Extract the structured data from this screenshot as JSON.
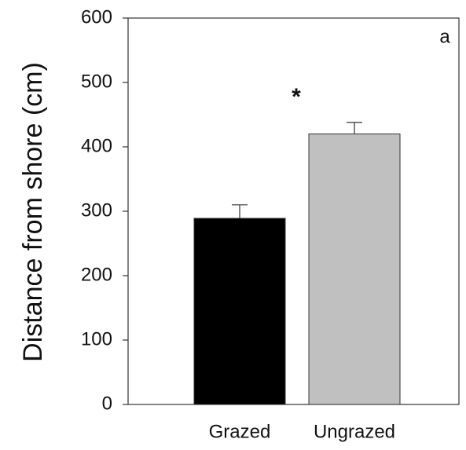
{
  "chart_data": {
    "type": "bar",
    "y_label": "Distance from shore (cm)",
    "categories": [
      "Grazed",
      "Ungrazed"
    ],
    "values": [
      289,
      420
    ],
    "errors": [
      21,
      18
    ],
    "colors": [
      "#000000",
      "#c0c0c0"
    ],
    "ylim": [
      0,
      600
    ],
    "yticks": [
      0,
      100,
      200,
      300,
      400,
      500,
      600
    ],
    "annotations": [
      "*",
      "a"
    ]
  }
}
